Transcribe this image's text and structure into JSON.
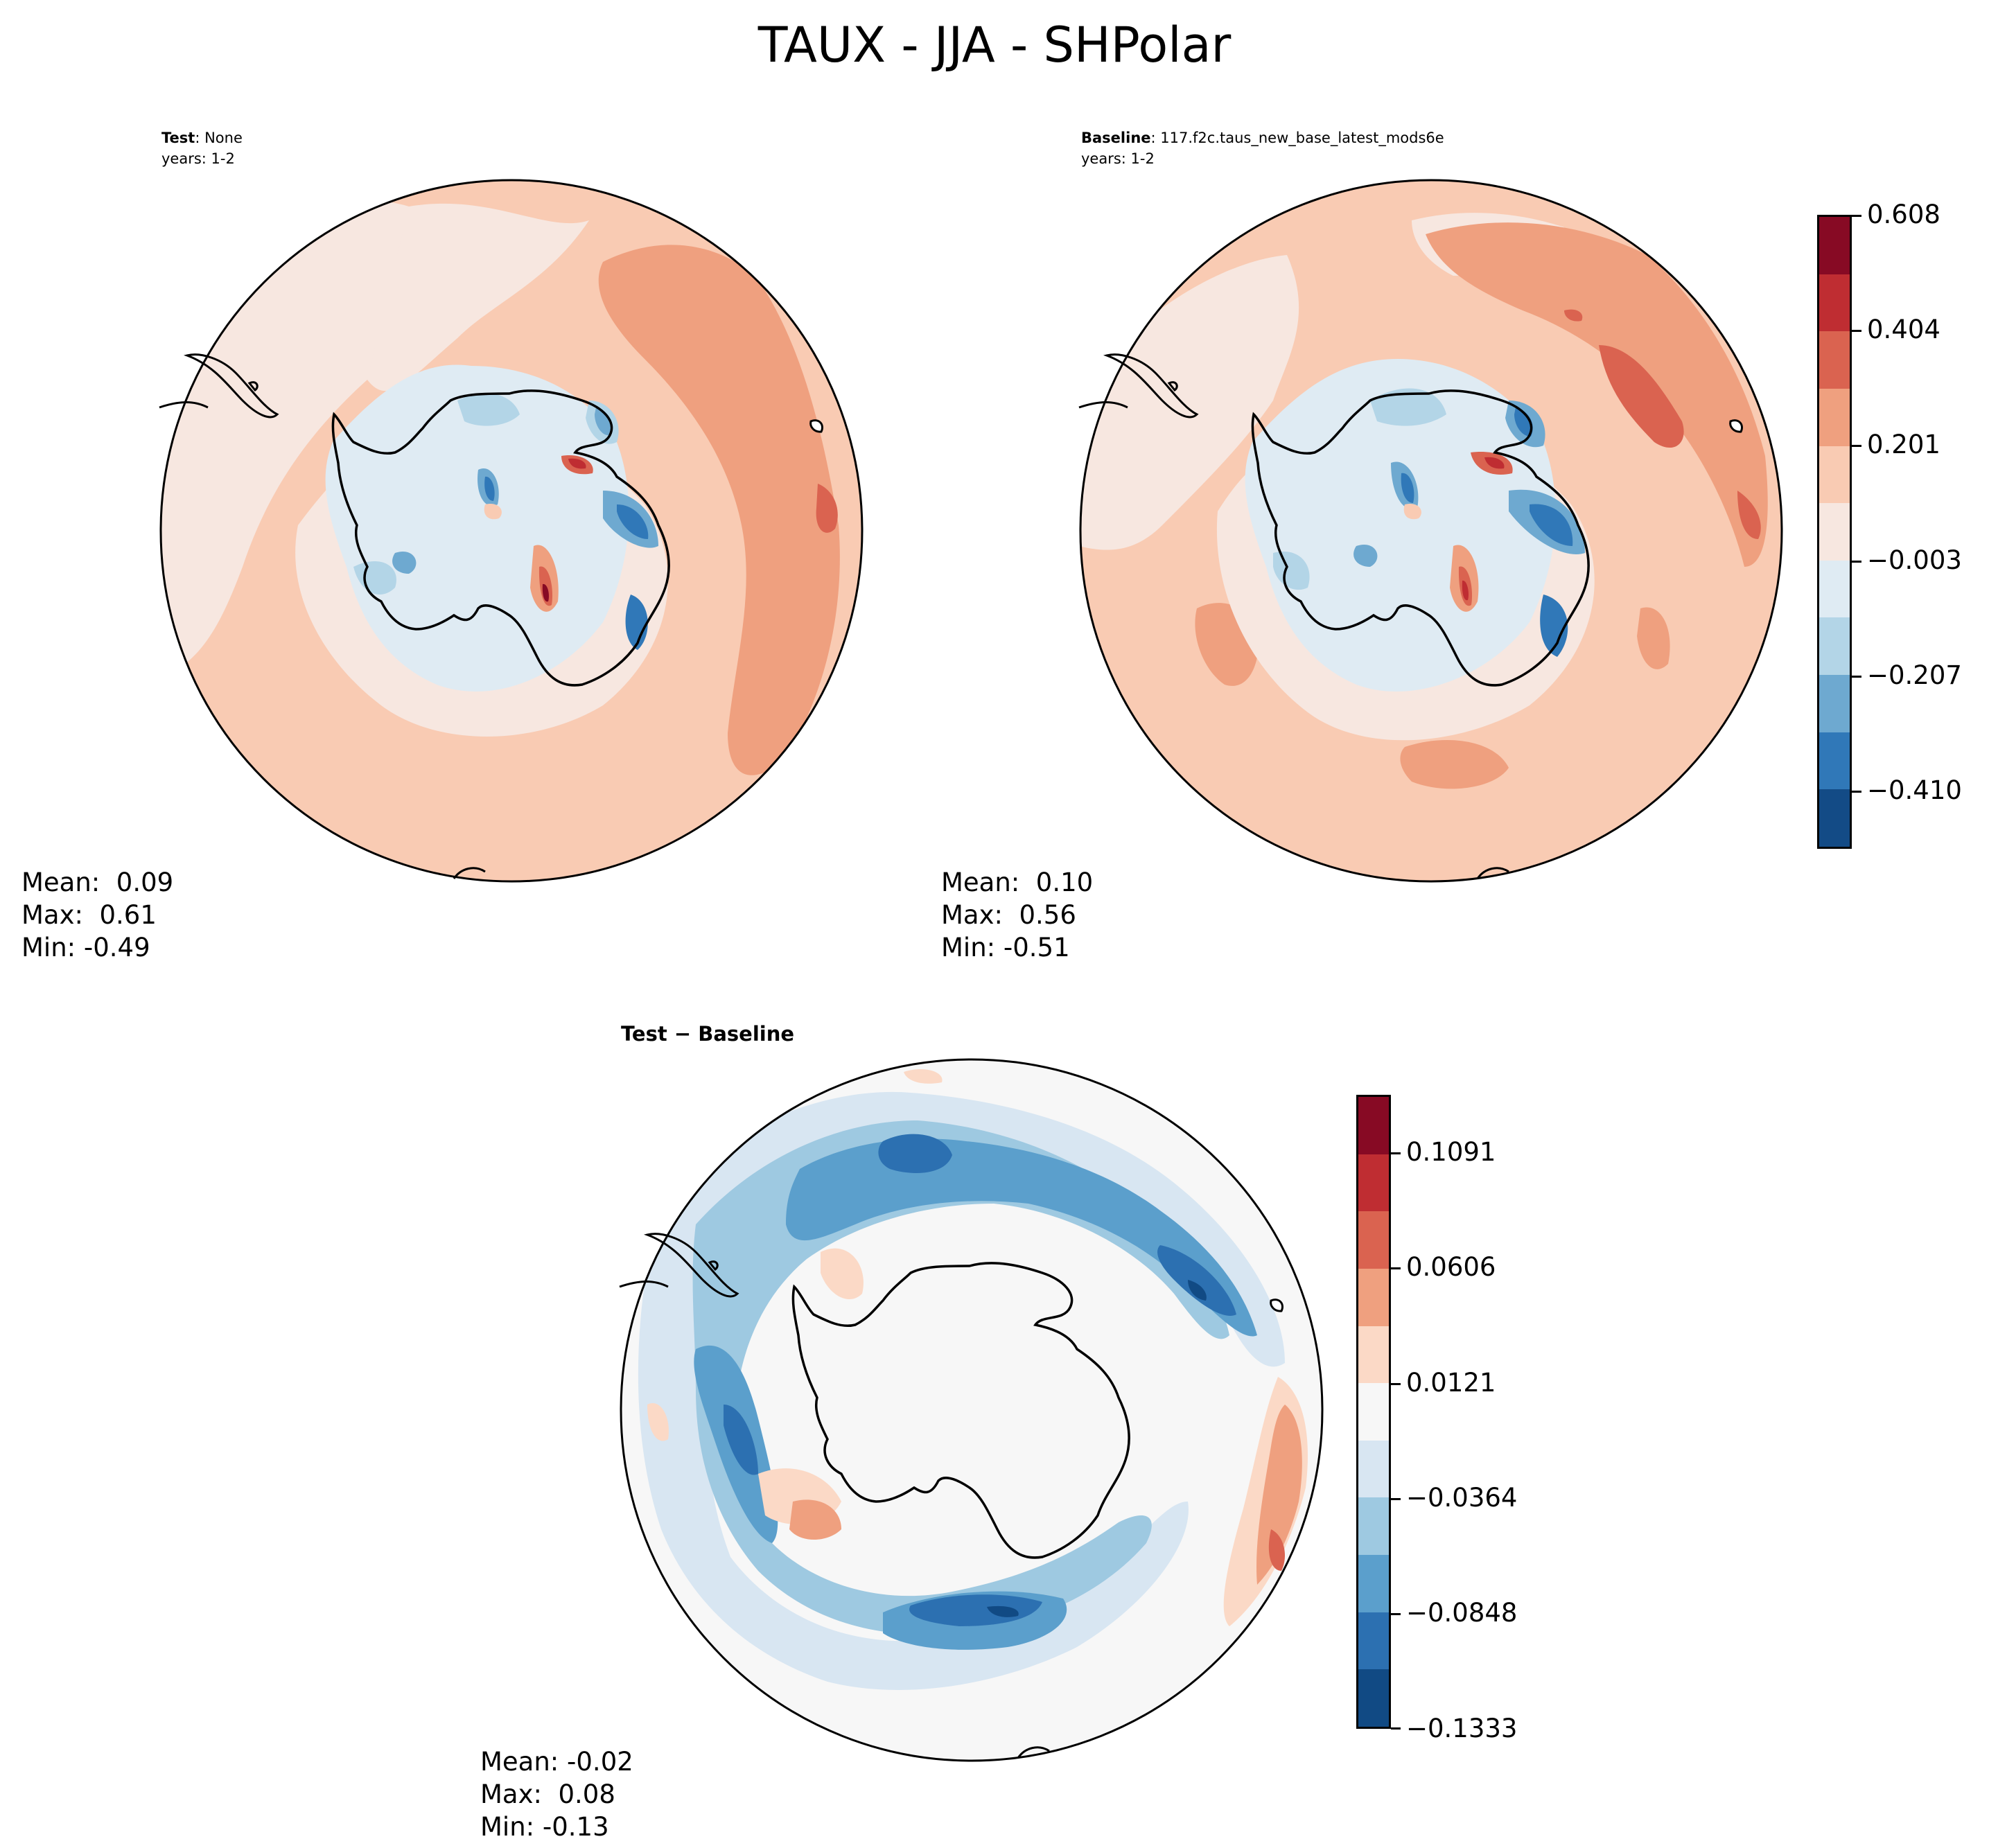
{
  "figure": {
    "title": "TAUX - JJA - SHPolar"
  },
  "panels": {
    "test": {
      "label_bold": "Test",
      "label_rest": ": None",
      "years": "years: 1-2",
      "stats": {
        "mean": "Mean:  0.09",
        "max": "Max:  0.61",
        "min": "Min: -0.49"
      }
    },
    "baseline": {
      "label_bold": "Baseline",
      "label_rest": ": 117.f2c.taus_new_base_latest_mods6e",
      "years": "years: 1-2",
      "stats": {
        "mean": "Mean:  0.10",
        "max": "Max:  0.56",
        "min": "Min: -0.51"
      }
    },
    "diff": {
      "title_a": "Test",
      "title_sep": " − ",
      "title_b": "Baseline",
      "stats": {
        "mean": "Mean: -0.02",
        "max": "Max:  0.08",
        "min": "Min: -0.13"
      }
    }
  },
  "colorbars": {
    "main": {
      "tick_labels": [
        "0.608",
        "0.404",
        "0.201",
        "−0.003",
        "−0.207",
        "−0.410"
      ],
      "colors_top_to_bottom": [
        "#870a24",
        "#bf2d32",
        "#da6350",
        "#efa07f",
        "#f9cbb3",
        "#f7e7e0",
        "#dfebf3",
        "#b3d5e7",
        "#6ea9d0",
        "#3078b8",
        "#134b86"
      ]
    },
    "diff": {
      "tick_labels": [
        "0.1091",
        "0.0606",
        "0.0121",
        "−0.0364",
        "−0.0848",
        "−0.1333"
      ],
      "colors_top_to_bottom": [
        "#870a24",
        "#bf2d32",
        "#da6350",
        "#efa07f",
        "#fbd9c6",
        "#f7f7f7",
        "#d8e6f2",
        "#9ec9e1",
        "#5b9fcc",
        "#2c70b1",
        "#114a84"
      ]
    }
  },
  "colors": {
    "field_light_red": "#f9cbb3",
    "field_pale_red": "#f7e7e0",
    "field_mid_red": "#efa07f",
    "field_strong_red": "#da6350",
    "field_neutral": "#f7f7f7"
  }
}
